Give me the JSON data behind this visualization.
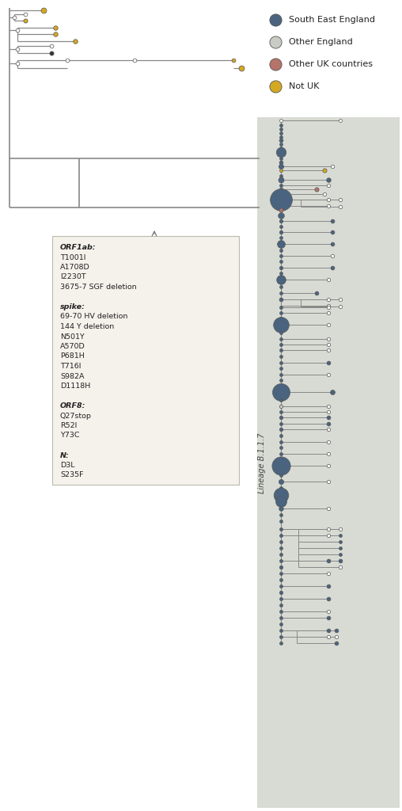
{
  "fig_width": 5.08,
  "fig_height": 10.24,
  "bg_color": "#ffffff",
  "shaded_bg": "#d8dbd3",
  "legend_labels": [
    "South East England",
    "Other England",
    "Other UK countries",
    "Not UK"
  ],
  "legend_colors": [
    "#4a6480",
    "#c8ccc4",
    "#b5736a",
    "#d4a820"
  ],
  "annotation_lines": [
    "ORF1ab:",
    "T1001I",
    "A1708D",
    "I2230T",
    "3675-7 SGF deletion",
    "",
    "spike:",
    "69-70 HV deletion",
    "144 Y deletion",
    "N501Y",
    "A570D",
    "P681H",
    "T716I",
    "S982A",
    "D1118H",
    "",
    "ORF8:",
    "Q27stop",
    "R52I",
    "Y73C",
    "",
    "N:",
    "D3L",
    "S235F"
  ],
  "annotation_bold": [
    "ORF1ab:",
    "spike:",
    "ORF8:",
    "N:"
  ],
  "lineage_label": "Lineage B.1.1.7",
  "se_color": "#4a6480",
  "oe_color": "#c8ccc4",
  "uk_color": "#b5736a",
  "notuk_color": "#d4a820",
  "line_color": "#888888",
  "node_ec": "#555555"
}
